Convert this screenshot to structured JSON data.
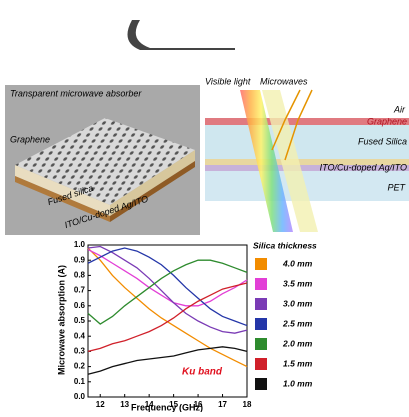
{
  "schematic": {
    "title": "Transparent microwave absorber",
    "graphene": "Graphene",
    "fused_silica": "Fused silica",
    "electrode": "ITO/Cu-doped Ag/ITO"
  },
  "layers": {
    "visible_light": "Visible light",
    "microwaves": "Microwaves",
    "air": "Air",
    "graphene": "Graphene",
    "fused_silica": "Fused Silica",
    "electrode": "ITO/Cu-doped Ag/ITO",
    "pet": "PET"
  },
  "chart_data": {
    "type": "line",
    "xlabel": "Frequency (GHz)",
    "ylabel": "Microwave absorption (A)",
    "legend_title": "Silica thickness",
    "annotation": "Ku band",
    "x": [
      11.5,
      12,
      12.5,
      13,
      13.5,
      14,
      14.5,
      15,
      15.5,
      16,
      16.5,
      17,
      17.5,
      18
    ],
    "xlim": [
      11.5,
      18
    ],
    "xticks": [
      12,
      13,
      14,
      15,
      16,
      17,
      18
    ],
    "ylim": [
      0,
      1
    ],
    "yticks": [
      {
        "value": 0,
        "label": "0.0"
      },
      0.1,
      0.2,
      0.3,
      0.4,
      0.5,
      0.6,
      0.7,
      0.8,
      0.9,
      {
        "value": 1,
        "label": "1.0"
      }
    ],
    "series": [
      {
        "name": "4.0 mm",
        "color": "#f28c00",
        "values": [
          0.98,
          0.9,
          0.8,
          0.72,
          0.65,
          0.58,
          0.52,
          0.47,
          0.42,
          0.37,
          0.32,
          0.28,
          0.24,
          0.2
        ]
      },
      {
        "name": "3.5 mm",
        "color": "#e23fd6",
        "values": [
          0.97,
          0.93,
          0.88,
          0.83,
          0.78,
          0.72,
          0.67,
          0.62,
          0.6,
          0.6,
          0.63,
          0.68,
          0.72,
          0.77
        ]
      },
      {
        "name": "3.0 mm",
        "color": "#7a3bb5",
        "values": [
          0.98,
          0.99,
          0.95,
          0.9,
          0.85,
          0.78,
          0.7,
          0.62,
          0.55,
          0.5,
          0.46,
          0.43,
          0.42,
          0.44
        ]
      },
      {
        "name": "2.5 mm",
        "color": "#2436a8",
        "values": [
          0.88,
          0.92,
          0.96,
          0.98,
          0.96,
          0.92,
          0.87,
          0.8,
          0.72,
          0.65,
          0.58,
          0.53,
          0.5,
          0.47
        ]
      },
      {
        "name": "2.0 mm",
        "color": "#2e8b2e",
        "values": [
          0.55,
          0.48,
          0.53,
          0.6,
          0.66,
          0.72,
          0.78,
          0.83,
          0.87,
          0.9,
          0.9,
          0.88,
          0.85,
          0.82
        ]
      },
      {
        "name": "1.5 mm",
        "color": "#d0202a",
        "values": [
          0.3,
          0.32,
          0.35,
          0.37,
          0.4,
          0.43,
          0.47,
          0.52,
          0.58,
          0.63,
          0.67,
          0.71,
          0.73,
          0.75
        ]
      },
      {
        "name": "1.0 mm",
        "color": "#111111",
        "values": [
          0.15,
          0.17,
          0.2,
          0.22,
          0.24,
          0.25,
          0.26,
          0.27,
          0.29,
          0.31,
          0.32,
          0.33,
          0.32,
          0.3
        ]
      }
    ]
  }
}
